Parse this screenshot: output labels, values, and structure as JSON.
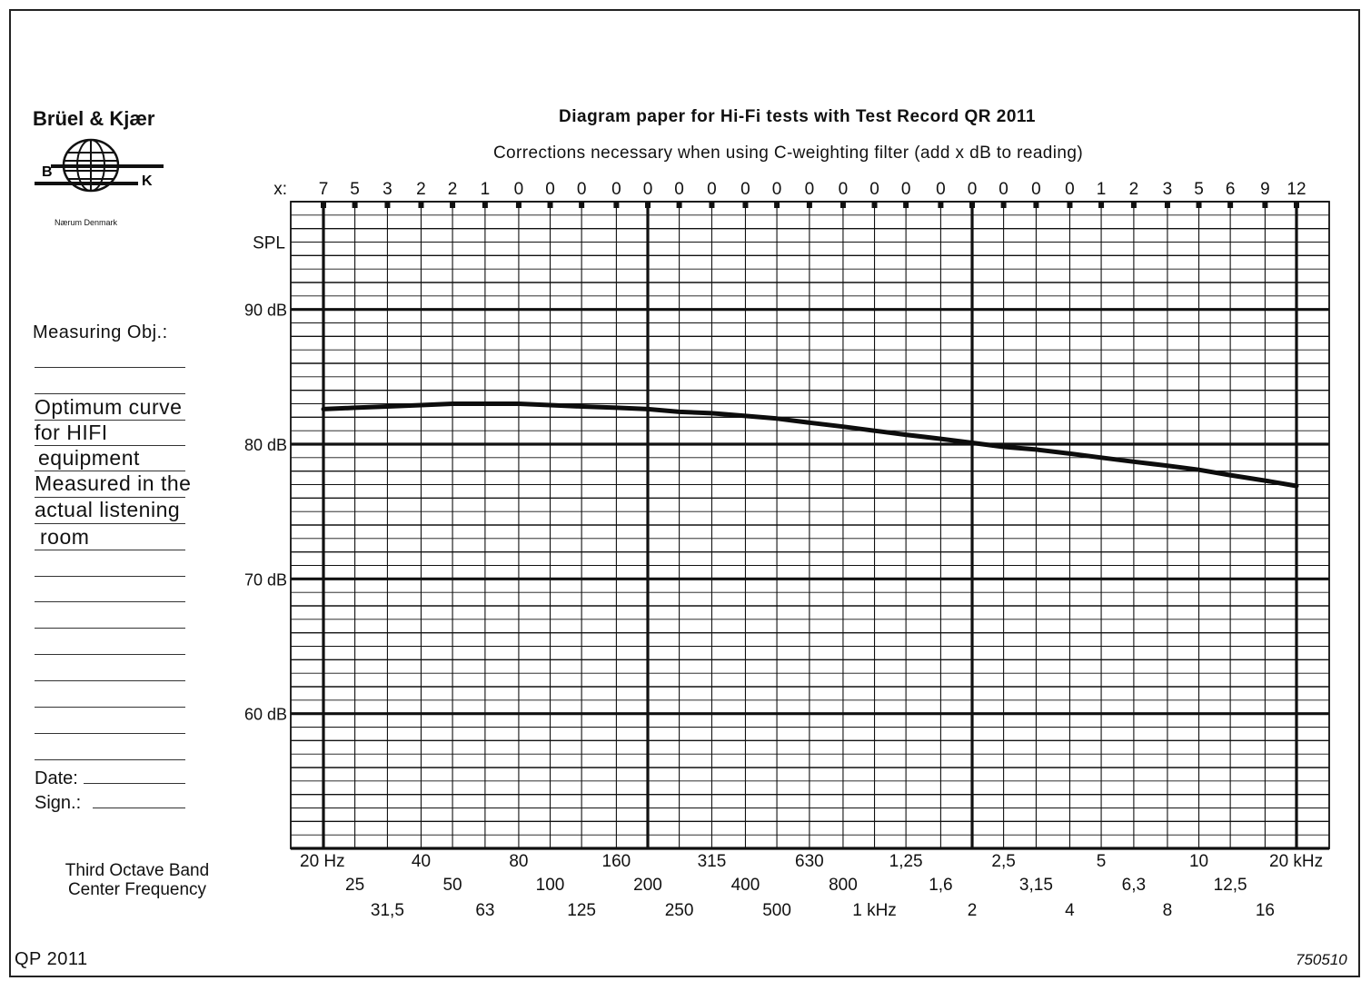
{
  "header": {
    "brand": "Brüel & Kjær",
    "logo_letters": [
      "B",
      "K"
    ],
    "location": "Nærum Denmark",
    "title": "Diagram paper for Hi-Fi tests with Test Record QR 2011",
    "subtitle": "Corrections necessary when using C-weighting filter (add x dB to reading)"
  },
  "sidebar": {
    "measuring_label": "Measuring Obj.:",
    "handwritten_lines": [
      "Optimum curve",
      "for HIFI",
      "equipment",
      "Measured in the",
      "actual listening",
      "room"
    ],
    "date_label": "Date:",
    "sign_label": "Sign.:",
    "band_label_lines": [
      "Third Octave Band",
      "Center Frequency"
    ]
  },
  "footer": {
    "left_code": "QP 2011",
    "right_code": "750510"
  },
  "chart_data": {
    "type": "line",
    "x_scale": "log",
    "y_unit": "dB",
    "x_prefix": "x:",
    "y_title": "SPL",
    "ylim": [
      50,
      98
    ],
    "y_tick_values": [
      90,
      80,
      70,
      60
    ],
    "y_tick_labels": [
      "90 dB",
      "80 dB",
      "70 dB",
      "60 dB"
    ],
    "grid": true,
    "bands_hz": [
      20,
      25,
      31.5,
      40,
      50,
      63,
      80,
      100,
      125,
      160,
      200,
      250,
      315,
      400,
      500,
      630,
      800,
      1000,
      1250,
      1600,
      2000,
      2500,
      3150,
      4000,
      5000,
      6300,
      8000,
      10000,
      12500,
      16000,
      20000
    ],
    "band_labels": [
      "20 Hz",
      "25",
      "31,5",
      "40",
      "50",
      "63",
      "80",
      "100",
      "125",
      "160",
      "200",
      "250",
      "315",
      "400",
      "500",
      "630",
      "800",
      "1 kHz",
      "1,25",
      "1,6",
      "2",
      "2,5",
      "3,15",
      "4",
      "5",
      "6,3",
      "8",
      "10",
      "12,5",
      "16",
      "20 kHz"
    ],
    "c_weighting_corrections_db": [
      7,
      5,
      3,
      2,
      2,
      1,
      0,
      0,
      0,
      0,
      0,
      0,
      0,
      0,
      0,
      0,
      0,
      0,
      0,
      0,
      0,
      0,
      0,
      0,
      1,
      2,
      3,
      5,
      6,
      9,
      12
    ],
    "series": [
      {
        "values_db": [
          82.6,
          82.7,
          82.8,
          82.9,
          83.0,
          83.0,
          83.0,
          82.9,
          82.8,
          82.7,
          82.6,
          82.4,
          82.3,
          82.1,
          81.9,
          81.6,
          81.3,
          81.0,
          80.7,
          80.4,
          80.1,
          79.8,
          79.6,
          79.3,
          79.0,
          78.7,
          78.4,
          78.1,
          77.7,
          77.3,
          76.9
        ]
      }
    ]
  }
}
